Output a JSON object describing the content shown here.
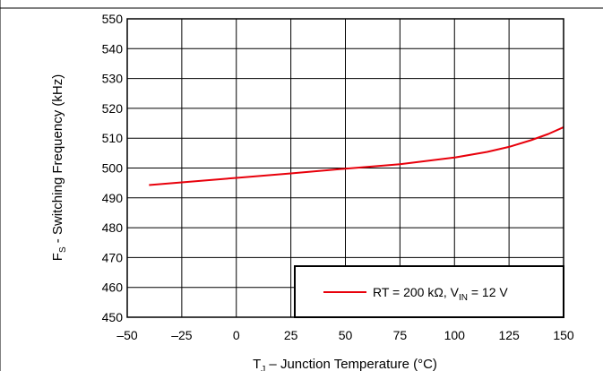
{
  "chart_data": {
    "type": "line",
    "xlabel": {
      "main": "T",
      "sub": "J",
      "rest": " – Junction Temperature (°C)"
    },
    "ylabel": {
      "main": "F",
      "sub": "S",
      "rest": " - Switching Frequency (kHz)"
    },
    "xlim": [
      -50,
      150
    ],
    "ylim": [
      450,
      550
    ],
    "xticks": [
      -50,
      -25,
      0,
      25,
      50,
      75,
      100,
      125,
      150
    ],
    "xtick_labels": [
      "–50",
      "–25",
      "0",
      "25",
      "50",
      "75",
      "100",
      "125",
      "150"
    ],
    "yticks": [
      450,
      460,
      470,
      480,
      490,
      500,
      510,
      520,
      530,
      540,
      550
    ],
    "ytick_labels": [
      "450",
      "460",
      "470",
      "480",
      "490",
      "500",
      "510",
      "520",
      "530",
      "540",
      "550"
    ],
    "grid": true,
    "legend_position": "bottom-right",
    "series": [
      {
        "name": {
          "main": "RT = 200 kΩ, V",
          "sub": "IN",
          "rest": " = 12 V"
        },
        "color": "#e8000b",
        "x": [
          -40,
          -25,
          0,
          25,
          50,
          75,
          100,
          115,
          125,
          135,
          143,
          150
        ],
        "y": [
          494.3,
          495.2,
          496.7,
          498.2,
          499.8,
          501.3,
          503.5,
          505.4,
          507.1,
          509.3,
          511.4,
          513.7
        ]
      }
    ]
  }
}
